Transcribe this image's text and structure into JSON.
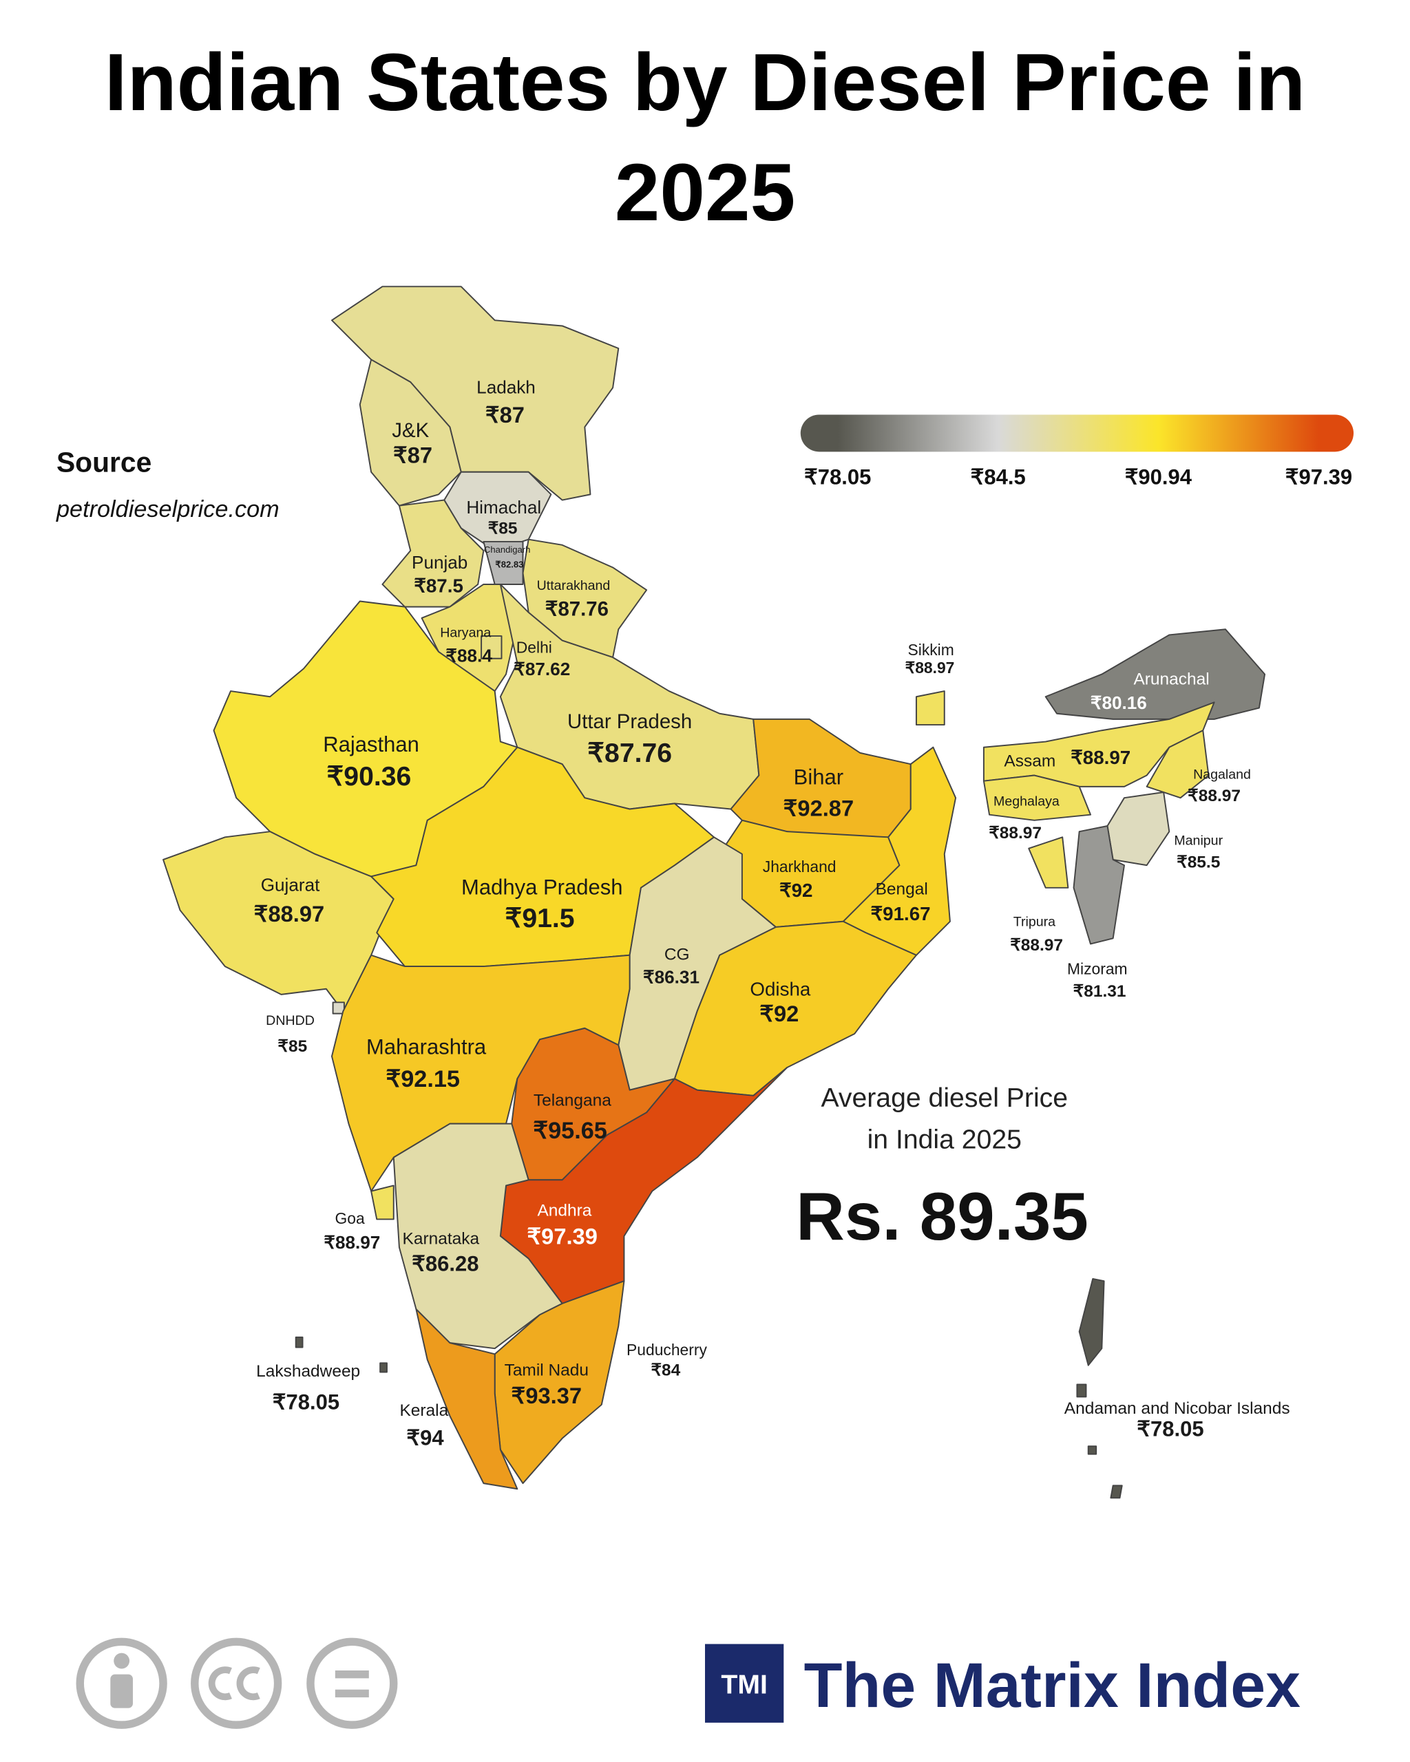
{
  "title": "Indian States by Diesel Price in 2025",
  "source": {
    "heading": "Source",
    "url": "petroldieselprice.com"
  },
  "legend": {
    "ticks": [
      {
        "value": 78.05,
        "label": "₹78.05"
      },
      {
        "value": 84.5,
        "label": "₹84.5"
      },
      {
        "value": 90.94,
        "label": "₹90.94"
      },
      {
        "value": 97.39,
        "label": "₹97.39"
      }
    ],
    "colors": [
      "#57574f",
      "#d9d9d9",
      "#fbe52a",
      "#de4a0e"
    ]
  },
  "states": [
    {
      "name": "Ladakh",
      "value": 87,
      "label": "₹87"
    },
    {
      "name": "J&K",
      "value": 87,
      "label": "₹87"
    },
    {
      "name": "Himachal",
      "value": 85,
      "label": "₹85"
    },
    {
      "name": "Chandigarh",
      "value": 82.83,
      "label": "₹82.83"
    },
    {
      "name": "Punjab",
      "value": 87.5,
      "label": "₹87.5"
    },
    {
      "name": "Uttarakhand",
      "value": 87.76,
      "label": "₹87.76"
    },
    {
      "name": "Haryana",
      "value": 88.4,
      "label": "₹88.4"
    },
    {
      "name": "Delhi",
      "value": 87.62,
      "label": "₹87.62"
    },
    {
      "name": "Rajasthan",
      "value": 90.36,
      "label": "₹90.36"
    },
    {
      "name": "Uttar Pradesh",
      "value": 87.76,
      "label": "₹87.76"
    },
    {
      "name": "Bihar",
      "value": 92.87,
      "label": "₹92.87"
    },
    {
      "name": "Sikkim",
      "value": 88.97,
      "label": "₹88.97"
    },
    {
      "name": "Arunachal",
      "value": 80.16,
      "label": "₹80.16"
    },
    {
      "name": "Assam",
      "value": 88.97,
      "label": "₹88.97"
    },
    {
      "name": "Meghalaya",
      "value": 88.97,
      "label": "₹88.97"
    },
    {
      "name": "Nagaland",
      "value": 88.97,
      "label": "₹88.97"
    },
    {
      "name": "Manipur",
      "value": 85.5,
      "label": "₹85.5"
    },
    {
      "name": "Tripura",
      "value": 88.97,
      "label": "₹88.97"
    },
    {
      "name": "Mizoram",
      "value": 81.31,
      "label": "₹81.31"
    },
    {
      "name": "Gujarat",
      "value": 88.97,
      "label": "₹88.97"
    },
    {
      "name": "Madhya Pradesh",
      "value": 91.5,
      "label": "₹91.5"
    },
    {
      "name": "Jharkhand",
      "value": 92,
      "label": "₹92"
    },
    {
      "name": "Bengal",
      "value": 91.67,
      "label": "₹91.67"
    },
    {
      "name": "CG",
      "value": 86.31,
      "label": "₹86.31"
    },
    {
      "name": "Odisha",
      "value": 92,
      "label": "₹92"
    },
    {
      "name": "DNHDD",
      "value": 85,
      "label": "₹85"
    },
    {
      "name": "Maharashtra",
      "value": 92.15,
      "label": "₹92.15"
    },
    {
      "name": "Telangana",
      "value": 95.65,
      "label": "₹95.65"
    },
    {
      "name": "Andhra",
      "value": 97.39,
      "label": "₹97.39"
    },
    {
      "name": "Goa",
      "value": 88.97,
      "label": "₹88.97"
    },
    {
      "name": "Karnataka",
      "value": 86.28,
      "label": "₹86.28"
    },
    {
      "name": "Puducherry",
      "value": 84,
      "label": "₹84"
    },
    {
      "name": "Tamil Nadu",
      "value": 93.37,
      "label": "₹93.37"
    },
    {
      "name": "Lakshadweep",
      "value": 78.05,
      "label": "₹78.05"
    },
    {
      "name": "Kerala",
      "value": 94,
      "label": "₹94"
    },
    {
      "name": "Andaman and Nicobar Islands",
      "value": 78.05,
      "label": "₹78.05"
    }
  ],
  "average": {
    "line1": "Average diesel Price",
    "line2": "in India 2025",
    "value_text": "Rs. 89.35"
  },
  "brand": {
    "mark": "TMI",
    "name": "The Matrix Index"
  }
}
